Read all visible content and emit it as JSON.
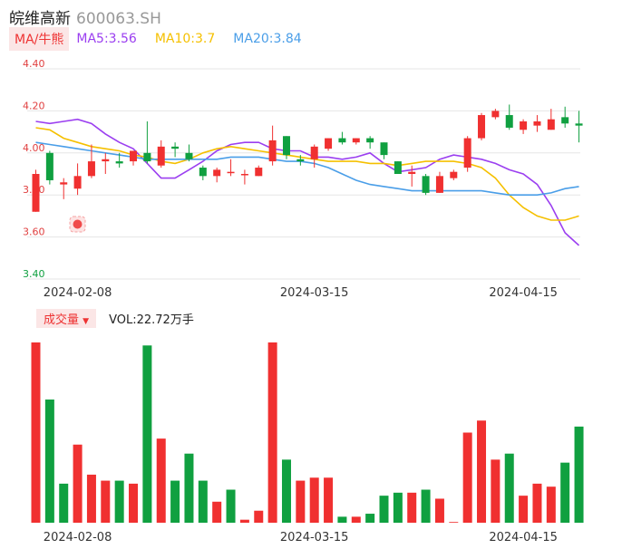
{
  "header": {
    "name": "皖维高新",
    "code": "600063.SH"
  },
  "ma_legend": {
    "tag": "MA/牛熊",
    "items": [
      {
        "label": "MA5:3.56",
        "color": "#9b3ff0"
      },
      {
        "label": "MA10:3.7",
        "color": "#f5c000"
      },
      {
        "label": "MA20:3.84",
        "color": "#4a9ee8"
      }
    ]
  },
  "volume_legend": {
    "tag": "成交量",
    "value": "VOL:22.72万手"
  },
  "colors": {
    "up": "#f03030",
    "down": "#10a040",
    "grid": "#e6e6e6",
    "axis_label": "#333333",
    "y_tick": "#e04040",
    "y_tick_low": "#10a040"
  },
  "chart_data": [
    {
      "type": "candlestick",
      "y_ticks": [
        "4.40",
        "4.20",
        "4.00",
        "3.80",
        "3.60",
        "3.40"
      ],
      "ylim": [
        3.4,
        4.4
      ],
      "x_tick_labels": [
        {
          "label": "2024-02-08",
          "index": 3
        },
        {
          "label": "2024-03-15",
          "index": 20
        },
        {
          "label": "2024-04-15",
          "index": 35
        }
      ],
      "candles": [
        {
          "o": 3.72,
          "c": 3.9,
          "h": 3.92,
          "l": 3.72
        },
        {
          "o": 4.0,
          "c": 3.87,
          "h": 4.01,
          "l": 3.85
        },
        {
          "o": 3.85,
          "c": 3.86,
          "h": 3.88,
          "l": 3.78
        },
        {
          "o": 3.83,
          "c": 3.89,
          "h": 3.95,
          "l": 3.8
        },
        {
          "o": 3.89,
          "c": 3.96,
          "h": 4.04,
          "l": 3.88
        },
        {
          "o": 3.96,
          "c": 3.97,
          "h": 4.0,
          "l": 3.9
        },
        {
          "o": 3.96,
          "c": 3.95,
          "h": 4.0,
          "l": 3.93
        },
        {
          "o": 3.96,
          "c": 4.01,
          "h": 4.01,
          "l": 3.94
        },
        {
          "o": 4.0,
          "c": 3.96,
          "h": 4.15,
          "l": 3.95
        },
        {
          "o": 3.94,
          "c": 4.03,
          "h": 4.06,
          "l": 3.93
        },
        {
          "o": 4.03,
          "c": 4.02,
          "h": 4.05,
          "l": 3.98
        },
        {
          "o": 4.0,
          "c": 3.97,
          "h": 4.04,
          "l": 3.96
        },
        {
          "o": 3.93,
          "c": 3.89,
          "h": 3.94,
          "l": 3.87
        },
        {
          "o": 3.89,
          "c": 3.92,
          "h": 3.93,
          "l": 3.86
        },
        {
          "o": 3.91,
          "c": 3.91,
          "h": 3.97,
          "l": 3.89
        },
        {
          "o": 3.9,
          "c": 3.9,
          "h": 3.92,
          "l": 3.85
        },
        {
          "o": 3.89,
          "c": 3.93,
          "h": 3.94,
          "l": 3.89
        },
        {
          "o": 3.96,
          "c": 4.06,
          "h": 4.13,
          "l": 3.94
        },
        {
          "o": 4.08,
          "c": 3.99,
          "h": 4.08,
          "l": 3.97
        },
        {
          "o": 3.97,
          "c": 3.96,
          "h": 3.99,
          "l": 3.94
        },
        {
          "o": 3.97,
          "c": 4.03,
          "h": 4.04,
          "l": 3.93
        },
        {
          "o": 4.02,
          "c": 4.07,
          "h": 4.07,
          "l": 4.01
        },
        {
          "o": 4.07,
          "c": 4.05,
          "h": 4.1,
          "l": 4.04
        },
        {
          "o": 4.05,
          "c": 4.07,
          "h": 4.07,
          "l": 4.04
        },
        {
          "o": 4.07,
          "c": 4.05,
          "h": 4.08,
          "l": 4.02
        },
        {
          "o": 4.05,
          "c": 3.99,
          "h": 4.05,
          "l": 3.97
        },
        {
          "o": 3.96,
          "c": 3.9,
          "h": 3.96,
          "l": 3.9
        },
        {
          "o": 3.9,
          "c": 3.91,
          "h": 3.94,
          "l": 3.84
        },
        {
          "o": 3.89,
          "c": 3.81,
          "h": 3.9,
          "l": 3.8
        },
        {
          "o": 3.81,
          "c": 3.89,
          "h": 3.91,
          "l": 3.81
        },
        {
          "o": 3.88,
          "c": 3.91,
          "h": 3.92,
          "l": 3.87
        },
        {
          "o": 3.93,
          "c": 4.07,
          "h": 4.08,
          "l": 3.91
        },
        {
          "o": 4.07,
          "c": 4.18,
          "h": 4.19,
          "l": 4.06
        },
        {
          "o": 4.17,
          "c": 4.2,
          "h": 4.21,
          "l": 4.16
        },
        {
          "o": 4.18,
          "c": 4.12,
          "h": 4.23,
          "l": 4.11
        },
        {
          "o": 4.11,
          "c": 4.15,
          "h": 4.16,
          "l": 4.09
        },
        {
          "o": 4.13,
          "c": 4.15,
          "h": 4.18,
          "l": 4.1
        },
        {
          "o": 4.11,
          "c": 4.16,
          "h": 4.21,
          "l": 4.11
        },
        {
          "o": 4.17,
          "c": 4.14,
          "h": 4.22,
          "l": 4.12
        },
        {
          "o": 4.14,
          "c": 4.13,
          "h": 4.2,
          "l": 4.05
        }
      ],
      "ma_lines": [
        {
          "name": "MA5",
          "color": "#9b3ff0",
          "values": [
            4.15,
            4.14,
            4.15,
            4.16,
            4.14,
            4.09,
            4.05,
            4.02,
            3.95,
            3.88,
            3.88,
            3.92,
            3.96,
            4.01,
            4.04,
            4.05,
            4.05,
            4.02,
            4.01,
            4.01,
            3.98,
            3.98,
            3.97,
            3.98,
            4.0,
            3.95,
            3.91,
            3.92,
            3.93,
            3.97,
            3.99,
            3.98,
            3.97,
            3.95,
            3.92,
            3.9,
            3.85,
            3.75,
            3.62,
            3.56
          ]
        },
        {
          "name": "MA10",
          "color": "#f5c000",
          "values": [
            4.12,
            4.11,
            4.07,
            4.05,
            4.03,
            4.02,
            4.01,
            3.99,
            3.98,
            3.96,
            3.95,
            3.97,
            4.0,
            4.02,
            4.03,
            4.02,
            4.01,
            4.0,
            3.99,
            3.98,
            3.97,
            3.96,
            3.96,
            3.96,
            3.95,
            3.95,
            3.94,
            3.95,
            3.96,
            3.96,
            3.96,
            3.95,
            3.93,
            3.88,
            3.8,
            3.74,
            3.7,
            3.68,
            3.68,
            3.7
          ]
        },
        {
          "name": "MA20",
          "color": "#4a9ee8",
          "values": [
            4.05,
            4.04,
            4.03,
            4.02,
            4.01,
            4.0,
            3.99,
            3.98,
            3.97,
            3.97,
            3.97,
            3.97,
            3.97,
            3.97,
            3.98,
            3.98,
            3.98,
            3.97,
            3.96,
            3.96,
            3.95,
            3.93,
            3.9,
            3.87,
            3.85,
            3.84,
            3.83,
            3.82,
            3.82,
            3.82,
            3.82,
            3.82,
            3.82,
            3.81,
            3.8,
            3.8,
            3.8,
            3.81,
            3.83,
            3.84
          ]
        }
      ]
    },
    {
      "type": "bar",
      "title": "成交量",
      "x_tick_labels": [
        {
          "label": "2024-02-08",
          "index": 3
        },
        {
          "label": "2024-03-15",
          "index": 20
        },
        {
          "label": "2024-04-15",
          "index": 35
        }
      ],
      "values": [
        60,
        41,
        13,
        26,
        16,
        14,
        14,
        13,
        59,
        28,
        14,
        23,
        14,
        7,
        11,
        1,
        4,
        60,
        21,
        14,
        15,
        15,
        2,
        2,
        3,
        9,
        10,
        10,
        11,
        8,
        0,
        30,
        34,
        21,
        23,
        9,
        13,
        12,
        20,
        32
      ],
      "directions": [
        "up",
        "down",
        "down",
        "up",
        "up",
        "up",
        "down",
        "up",
        "down",
        "up",
        "down",
        "down",
        "down",
        "up",
        "down",
        "up",
        "up",
        "up",
        "down",
        "up",
        "up",
        "up",
        "down",
        "up",
        "down",
        "down",
        "down",
        "up",
        "down",
        "up",
        "up",
        "up",
        "up",
        "up",
        "down",
        "up",
        "up",
        "up",
        "down",
        "down"
      ]
    }
  ]
}
